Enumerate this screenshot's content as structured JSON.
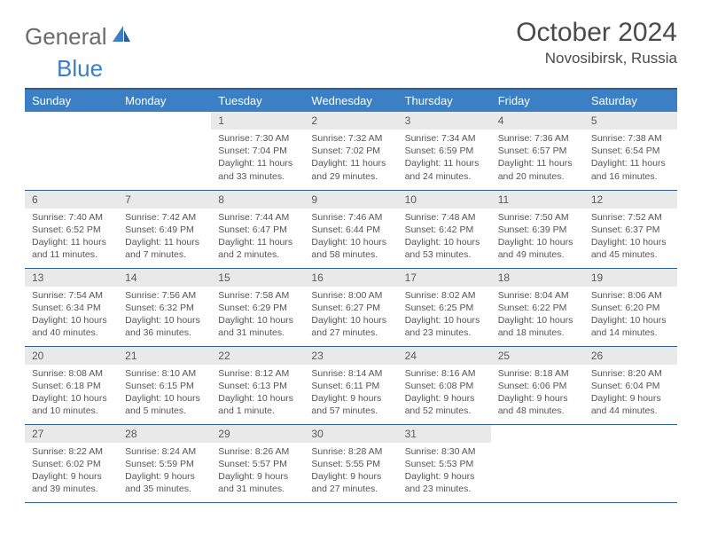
{
  "logo": {
    "text1": "General",
    "text2": "Blue"
  },
  "title": "October 2024",
  "location": "Novosibirsk, Russia",
  "colors": {
    "header_bg": "#3b7fc4",
    "header_border": "#2d5f94",
    "daynum_bg": "#e9e9e9",
    "text": "#555555"
  },
  "weekdays": [
    "Sunday",
    "Monday",
    "Tuesday",
    "Wednesday",
    "Thursday",
    "Friday",
    "Saturday"
  ],
  "weeks": [
    [
      null,
      null,
      {
        "n": "1",
        "sr": "7:30 AM",
        "ss": "7:04 PM",
        "dl": "11 hours and 33 minutes."
      },
      {
        "n": "2",
        "sr": "7:32 AM",
        "ss": "7:02 PM",
        "dl": "11 hours and 29 minutes."
      },
      {
        "n": "3",
        "sr": "7:34 AM",
        "ss": "6:59 PM",
        "dl": "11 hours and 24 minutes."
      },
      {
        "n": "4",
        "sr": "7:36 AM",
        "ss": "6:57 PM",
        "dl": "11 hours and 20 minutes."
      },
      {
        "n": "5",
        "sr": "7:38 AM",
        "ss": "6:54 PM",
        "dl": "11 hours and 16 minutes."
      }
    ],
    [
      {
        "n": "6",
        "sr": "7:40 AM",
        "ss": "6:52 PM",
        "dl": "11 hours and 11 minutes."
      },
      {
        "n": "7",
        "sr": "7:42 AM",
        "ss": "6:49 PM",
        "dl": "11 hours and 7 minutes."
      },
      {
        "n": "8",
        "sr": "7:44 AM",
        "ss": "6:47 PM",
        "dl": "11 hours and 2 minutes."
      },
      {
        "n": "9",
        "sr": "7:46 AM",
        "ss": "6:44 PM",
        "dl": "10 hours and 58 minutes."
      },
      {
        "n": "10",
        "sr": "7:48 AM",
        "ss": "6:42 PM",
        "dl": "10 hours and 53 minutes."
      },
      {
        "n": "11",
        "sr": "7:50 AM",
        "ss": "6:39 PM",
        "dl": "10 hours and 49 minutes."
      },
      {
        "n": "12",
        "sr": "7:52 AM",
        "ss": "6:37 PM",
        "dl": "10 hours and 45 minutes."
      }
    ],
    [
      {
        "n": "13",
        "sr": "7:54 AM",
        "ss": "6:34 PM",
        "dl": "10 hours and 40 minutes."
      },
      {
        "n": "14",
        "sr": "7:56 AM",
        "ss": "6:32 PM",
        "dl": "10 hours and 36 minutes."
      },
      {
        "n": "15",
        "sr": "7:58 AM",
        "ss": "6:29 PM",
        "dl": "10 hours and 31 minutes."
      },
      {
        "n": "16",
        "sr": "8:00 AM",
        "ss": "6:27 PM",
        "dl": "10 hours and 27 minutes."
      },
      {
        "n": "17",
        "sr": "8:02 AM",
        "ss": "6:25 PM",
        "dl": "10 hours and 23 minutes."
      },
      {
        "n": "18",
        "sr": "8:04 AM",
        "ss": "6:22 PM",
        "dl": "10 hours and 18 minutes."
      },
      {
        "n": "19",
        "sr": "8:06 AM",
        "ss": "6:20 PM",
        "dl": "10 hours and 14 minutes."
      }
    ],
    [
      {
        "n": "20",
        "sr": "8:08 AM",
        "ss": "6:18 PM",
        "dl": "10 hours and 10 minutes."
      },
      {
        "n": "21",
        "sr": "8:10 AM",
        "ss": "6:15 PM",
        "dl": "10 hours and 5 minutes."
      },
      {
        "n": "22",
        "sr": "8:12 AM",
        "ss": "6:13 PM",
        "dl": "10 hours and 1 minute."
      },
      {
        "n": "23",
        "sr": "8:14 AM",
        "ss": "6:11 PM",
        "dl": "9 hours and 57 minutes."
      },
      {
        "n": "24",
        "sr": "8:16 AM",
        "ss": "6:08 PM",
        "dl": "9 hours and 52 minutes."
      },
      {
        "n": "25",
        "sr": "8:18 AM",
        "ss": "6:06 PM",
        "dl": "9 hours and 48 minutes."
      },
      {
        "n": "26",
        "sr": "8:20 AM",
        "ss": "6:04 PM",
        "dl": "9 hours and 44 minutes."
      }
    ],
    [
      {
        "n": "27",
        "sr": "8:22 AM",
        "ss": "6:02 PM",
        "dl": "9 hours and 39 minutes."
      },
      {
        "n": "28",
        "sr": "8:24 AM",
        "ss": "5:59 PM",
        "dl": "9 hours and 35 minutes."
      },
      {
        "n": "29",
        "sr": "8:26 AM",
        "ss": "5:57 PM",
        "dl": "9 hours and 31 minutes."
      },
      {
        "n": "30",
        "sr": "8:28 AM",
        "ss": "5:55 PM",
        "dl": "9 hours and 27 minutes."
      },
      {
        "n": "31",
        "sr": "8:30 AM",
        "ss": "5:53 PM",
        "dl": "9 hours and 23 minutes."
      },
      null,
      null
    ]
  ],
  "labels": {
    "sunrise": "Sunrise:",
    "sunset": "Sunset:",
    "daylight": "Daylight:"
  }
}
